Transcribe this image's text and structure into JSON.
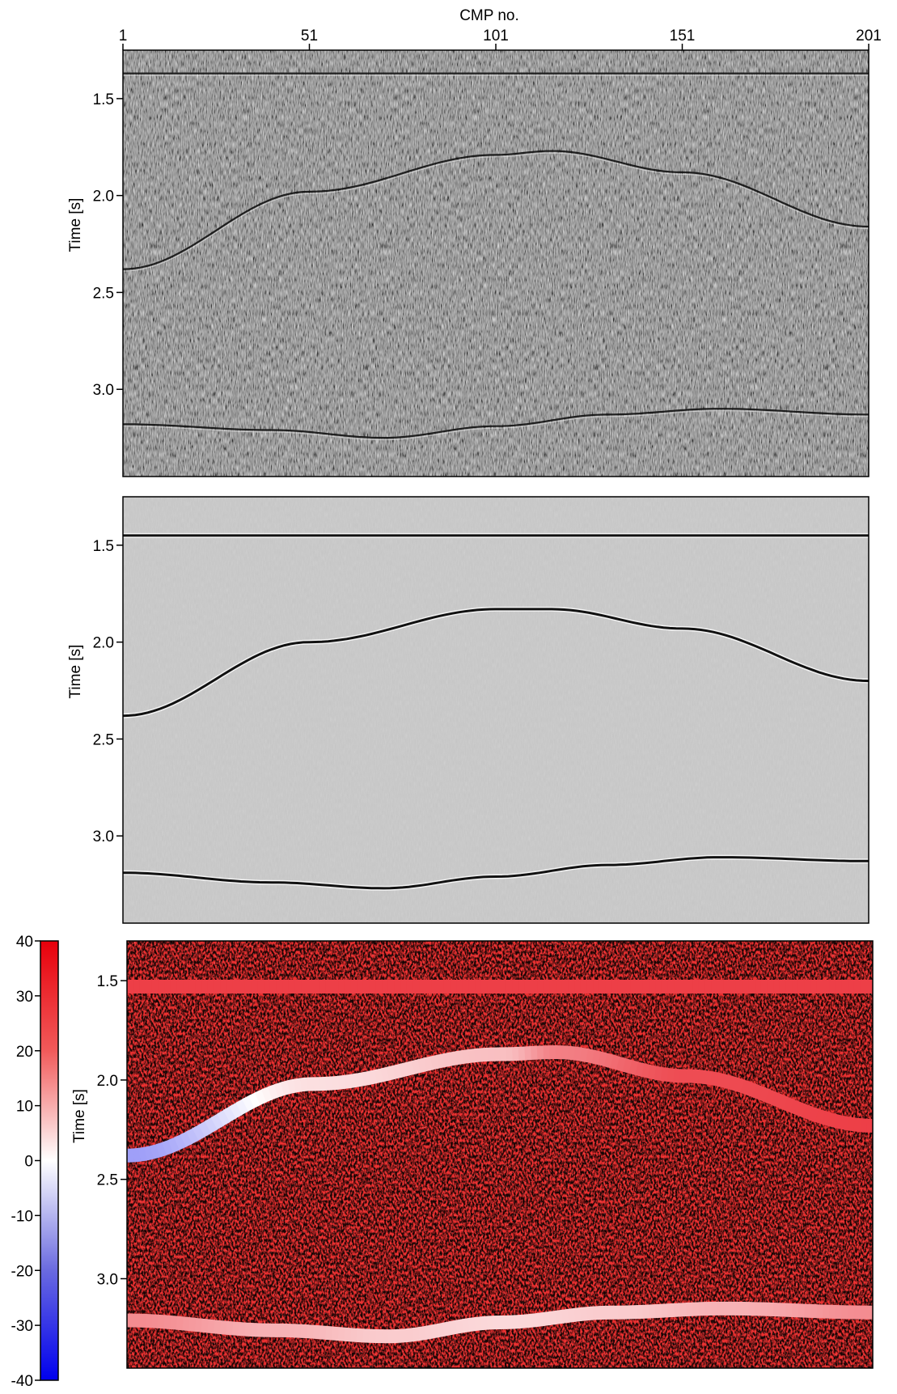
{
  "chart_data": [
    {
      "type": "heatmap",
      "panel": "top",
      "xlabel": "CMP no.",
      "ylabel": "Time [s]",
      "x_ticks": [
        1,
        51,
        101,
        151,
        201
      ],
      "xlim": [
        1,
        201
      ],
      "y_ticks": [
        "1.5",
        "2.0",
        "2.5",
        "3.0"
      ],
      "ylim": [
        1.25,
        3.45
      ],
      "colormap": "gray",
      "events": [
        {
          "name": "flat",
          "x": [
            1,
            201
          ],
          "t": [
            1.37,
            1.37
          ]
        },
        {
          "name": "dome",
          "x": [
            1,
            51,
            101,
            116,
            151,
            201
          ],
          "t": [
            2.38,
            1.98,
            1.79,
            1.77,
            1.88,
            2.16
          ]
        },
        {
          "name": "deep",
          "x": [
            1,
            41,
            71,
            101,
            131,
            161,
            201
          ],
          "t": [
            3.18,
            3.21,
            3.25,
            3.19,
            3.13,
            3.1,
            3.13
          ]
        }
      ]
    },
    {
      "type": "heatmap",
      "panel": "middle",
      "ylabel": "Time [s]",
      "y_ticks": [
        "1.5",
        "2.0",
        "2.5",
        "3.0"
      ],
      "xlim": [
        1,
        201
      ],
      "ylim": [
        1.25,
        3.45
      ],
      "colormap": "gray",
      "events": [
        {
          "name": "flat",
          "x": [
            1,
            201
          ],
          "t": [
            1.45,
            1.45
          ]
        },
        {
          "name": "dome",
          "x": [
            1,
            51,
            101,
            116,
            151,
            201
          ],
          "t": [
            2.38,
            2.0,
            1.83,
            1.83,
            1.93,
            2.2
          ]
        },
        {
          "name": "deep",
          "x": [
            1,
            41,
            71,
            101,
            131,
            161,
            201
          ],
          "t": [
            3.19,
            3.24,
            3.27,
            3.21,
            3.15,
            3.11,
            3.13
          ]
        }
      ]
    },
    {
      "type": "heatmap",
      "panel": "bottom",
      "ylabel": "Time [s]",
      "y_ticks": [
        "1.5",
        "2.0",
        "2.5",
        "3.0"
      ],
      "xlim": [
        1,
        201
      ],
      "ylim": [
        1.3,
        3.45
      ],
      "colormap": "blue-white-red",
      "colorbar": {
        "ticks": [
          "40",
          "30",
          "20",
          "10",
          "0",
          "-10",
          "-20",
          "-30",
          "-40"
        ],
        "range": [
          -40,
          40
        ]
      },
      "events": [
        {
          "name": "flat",
          "x": [
            1,
            201
          ],
          "t": [
            1.53,
            1.53
          ],
          "value": [
            30,
            30
          ]
        },
        {
          "name": "dome",
          "x": [
            1,
            51,
            101,
            116,
            151,
            201
          ],
          "t": [
            2.38,
            2.02,
            1.87,
            1.86,
            1.98,
            2.23
          ],
          "value": [
            -15,
            5,
            10,
            20,
            28,
            30
          ]
        },
        {
          "name": "deep",
          "x": [
            1,
            41,
            71,
            101,
            131,
            161,
            201
          ],
          "t": [
            3.21,
            3.26,
            3.29,
            3.22,
            3.17,
            3.15,
            3.17
          ],
          "value": [
            18,
            12,
            8,
            6,
            8,
            12,
            18
          ]
        }
      ]
    }
  ]
}
